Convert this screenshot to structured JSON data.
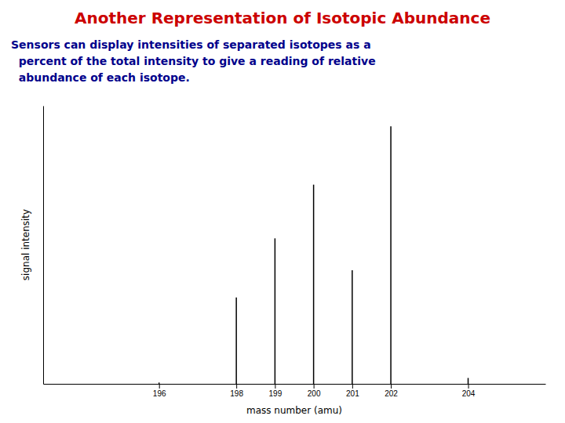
{
  "chart_data": {
    "type": "stem",
    "title": "Another Representation of Isotopic Abundance",
    "subtitle": [
      "Sensors can display intensities of separated isotopes as a",
      "  percent of the total intensity to give a reading of relative",
      "  abundance of each isotope."
    ],
    "xlabel": "mass number (amu)",
    "ylabel": "signal intensity",
    "x": [
      196,
      198,
      199,
      200,
      201,
      202,
      204
    ],
    "values": [
      0.15,
      10.02,
      16.87,
      23.1,
      13.18,
      29.86,
      0.68
    ],
    "color": "#000000",
    "xlim": [
      193,
      206
    ],
    "xticks": [
      196,
      198,
      199,
      200,
      201,
      202,
      204
    ],
    "ylim": [
      0,
      32.2488
    ],
    "tick_labels": "x"
  }
}
